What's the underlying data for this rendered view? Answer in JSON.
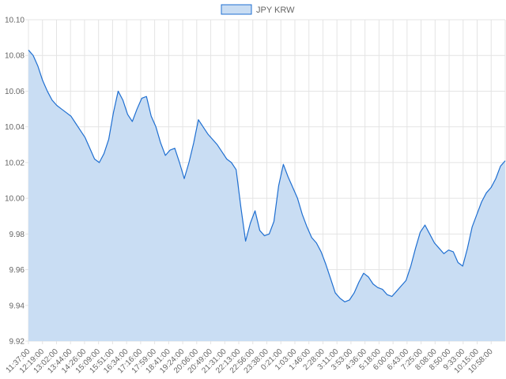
{
  "chart_data": {
    "type": "area",
    "title": "",
    "xlabel": "",
    "ylabel": "",
    "ylim": [
      9.92,
      10.1
    ],
    "y_ticks": [
      "10.10",
      "10.08",
      "10.06",
      "10.04",
      "10.02",
      "10.00",
      "9.98",
      "9.96",
      "9.94",
      "9.92"
    ],
    "y_tick_values": [
      10.1,
      10.08,
      10.06,
      10.04,
      10.02,
      10.0,
      9.98,
      9.96,
      9.94,
      9.92
    ],
    "x_tick_labels": [
      "11:37:00",
      "12:19:00",
      "13:02:00",
      "13:44:00",
      "14:26:00",
      "15:09:00",
      "15:51:00",
      "16:34:00",
      "17:16:00",
      "17:59:00",
      "18:41:00",
      "19:24:00",
      "20:06:00",
      "20:49:00",
      "21:31:00",
      "22:13:00",
      "22:56:00",
      "23:38:00",
      "0:21:00",
      "1:03:00",
      "1:46:00",
      "2:28:00",
      "3:11:00",
      "3:53:00",
      "4:36:00",
      "5:18:00",
      "6:00:00",
      "6:43:00",
      "7:25:00",
      "8:08:00",
      "8:50:00",
      "9:33:00",
      "10:15:00",
      "10:58:00"
    ],
    "grid": true,
    "legend_position": "top",
    "series": [
      {
        "name": "JPY KRW",
        "color": "#1f6fd1",
        "fill": "#c9ddf3",
        "values": [
          10.083,
          10.08,
          10.074,
          10.066,
          10.06,
          10.055,
          10.052,
          10.05,
          10.048,
          10.046,
          10.042,
          10.038,
          10.034,
          10.028,
          10.022,
          10.02,
          10.025,
          10.033,
          10.048,
          10.06,
          10.055,
          10.047,
          10.043,
          10.05,
          10.056,
          10.057,
          10.046,
          10.04,
          10.031,
          10.024,
          10.027,
          10.028,
          10.02,
          10.011,
          10.02,
          10.031,
          10.044,
          10.04,
          10.036,
          10.033,
          10.03,
          10.026,
          10.022,
          10.02,
          10.016,
          9.995,
          9.976,
          9.986,
          9.993,
          9.982,
          9.979,
          9.98,
          9.987,
          10.007,
          10.019,
          10.012,
          10.006,
          10.0,
          9.991,
          9.984,
          9.978,
          9.975,
          9.97,
          9.963,
          9.955,
          9.947,
          9.944,
          9.942,
          9.943,
          9.947,
          9.953,
          9.958,
          9.956,
          9.952,
          9.95,
          9.949,
          9.946,
          9.945,
          9.948,
          9.951,
          9.954,
          9.962,
          9.972,
          9.981,
          9.985,
          9.98,
          9.975,
          9.972,
          9.969,
          9.971,
          9.97,
          9.964,
          9.962,
          9.972,
          9.984,
          9.991,
          9.998,
          10.003,
          10.006,
          10.011,
          10.018,
          10.021
        ]
      }
    ]
  }
}
